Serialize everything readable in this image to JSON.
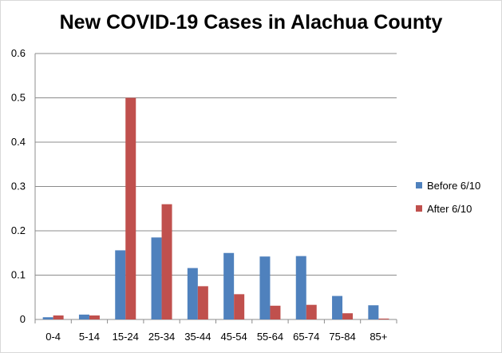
{
  "chart_data": {
    "type": "bar",
    "title": "New COVID-19 Cases in Alachua County",
    "xlabel": "",
    "ylabel": "",
    "ylim": [
      0,
      0.6
    ],
    "yticks": [
      "0",
      "0.1",
      "0.2",
      "0.3",
      "0.4",
      "0.5",
      "0.6"
    ],
    "grid": true,
    "legend_position": "right",
    "categories": [
      "0-4",
      "5-14",
      "15-24",
      "25-34",
      "35-44",
      "45-54",
      "55-64",
      "65-74",
      "75-84",
      "85+"
    ],
    "series": [
      {
        "name": "Before 6/10",
        "color": "#4f81bd",
        "values": [
          0.005,
          0.011,
          0.156,
          0.185,
          0.116,
          0.15,
          0.142,
          0.143,
          0.053,
          0.032
        ]
      },
      {
        "name": "After 6/10",
        "color": "#c0504d",
        "values": [
          0.009,
          0.009,
          0.5,
          0.26,
          0.075,
          0.057,
          0.031,
          0.033,
          0.014,
          0.002
        ]
      }
    ]
  }
}
